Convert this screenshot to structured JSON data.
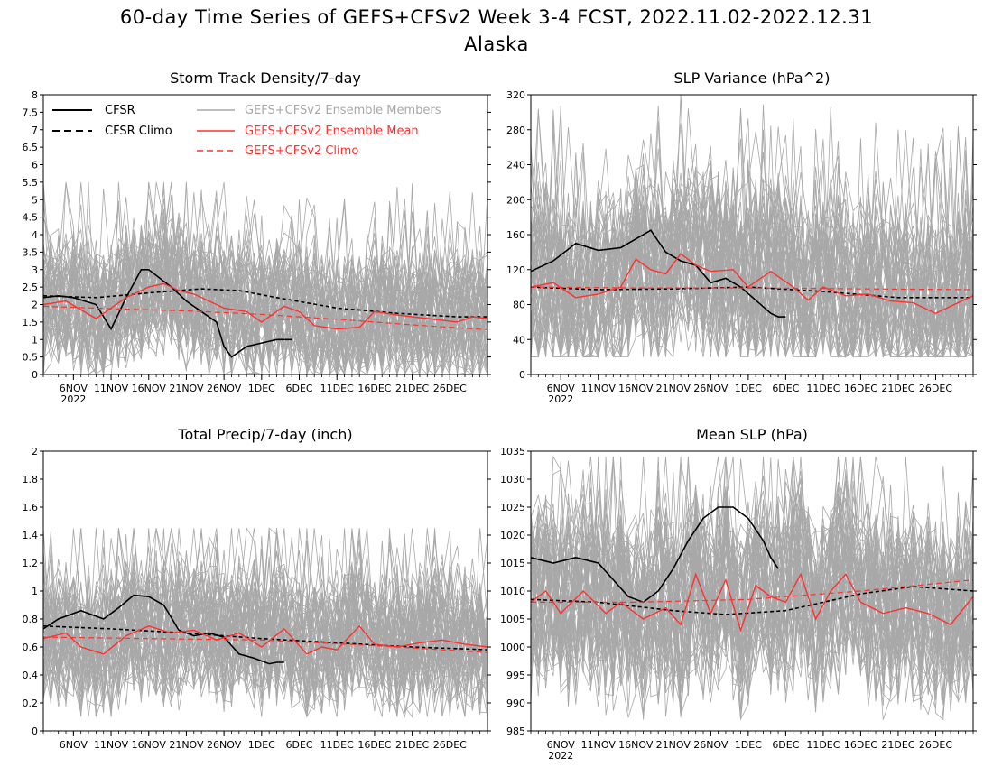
{
  "figure": {
    "title_line1": "60-day Time Series of GEFS+CFSv2 Week 3-4 FCST, 2022.11.02-2022.12.31",
    "title_line2": "Alaska"
  },
  "legend": {
    "cfsr": "CFSR",
    "cfsr_climo": "CFSR Climo",
    "members": "GEFS+CFSv2 Ensemble Members",
    "ens_mean": "GEFS+CFSv2 Ensemble Mean",
    "ens_climo": "GEFS+CFSv2 Climo"
  },
  "colors": {
    "cfsr": "#000000",
    "members": "#a8a8a8",
    "ens_mean": "#ff3030",
    "ens_climo": "#ff3030"
  },
  "x_axis": {
    "start_date": "2022.11.02",
    "end_date": "2022.12.31",
    "num_days": 60,
    "tick_labels": [
      "6NOV",
      "11NOV",
      "16NOV",
      "21NOV",
      "26NOV",
      "1DEC",
      "6DEC",
      "11DEC",
      "16DEC",
      "21DEC",
      "26DEC"
    ],
    "year_label": "2022"
  },
  "chart_data": [
    {
      "type": "line",
      "title": "Storm Track Density/7-day",
      "ylim": [
        0,
        8
      ],
      "yticks": [
        "0",
        "0.5",
        "1",
        "1.5",
        "2",
        "2.5",
        "3",
        "3.5",
        "4",
        "4.5",
        "5",
        "5.5",
        "6",
        "6.5",
        "7",
        "7.5",
        "8"
      ],
      "members_range": [
        0,
        5.5
      ],
      "series": [
        {
          "name": "CFSR",
          "x": [
            1,
            3,
            5,
            8,
            10,
            12,
            14,
            15,
            18,
            20,
            22,
            24,
            25,
            26,
            28,
            30,
            32,
            33,
            34
          ],
          "values": [
            2.2,
            2.25,
            2.2,
            2.0,
            1.3,
            2.2,
            3.0,
            3.0,
            2.5,
            2.1,
            1.8,
            1.5,
            0.8,
            0.5,
            0.8,
            0.9,
            1.0,
            1.0,
            1.0
          ]
        },
        {
          "name": "CFSR Climo",
          "x": [
            1,
            8,
            16,
            22,
            27,
            32,
            40,
            48,
            56,
            60
          ],
          "values": [
            2.25,
            2.2,
            2.35,
            2.45,
            2.4,
            2.2,
            1.9,
            1.75,
            1.65,
            1.65
          ]
        },
        {
          "name": "GEFS+CFSv2 Ensemble Mean",
          "x": [
            1,
            4,
            8,
            12,
            15,
            17,
            19,
            21,
            23,
            25,
            28,
            30,
            33,
            35,
            37,
            40,
            43,
            45,
            48,
            52,
            56,
            58,
            60
          ],
          "values": [
            2.0,
            2.1,
            1.6,
            2.2,
            2.5,
            2.6,
            2.4,
            2.3,
            2.1,
            1.9,
            1.8,
            1.5,
            1.95,
            1.8,
            1.4,
            1.3,
            1.35,
            1.8,
            1.7,
            1.6,
            1.5,
            1.65,
            1.6
          ]
        },
        {
          "name": "GEFS+CFSv2 Climo",
          "x": [
            1,
            10,
            20,
            30,
            40,
            50,
            60
          ],
          "values": [
            1.95,
            1.88,
            1.82,
            1.72,
            1.58,
            1.42,
            1.28
          ]
        }
      ]
    },
    {
      "type": "line",
      "title": "SLP Variance (hPa^2)",
      "ylim": [
        0,
        320
      ],
      "yticks": [
        "0",
        "40",
        "80",
        "120",
        "160",
        "200",
        "240",
        "280",
        "320"
      ],
      "members_range": [
        20,
        320
      ],
      "series": [
        {
          "name": "CFSR",
          "x": [
            1,
            4,
            7,
            10,
            13,
            15,
            17,
            19,
            21,
            23,
            25,
            27,
            29,
            31,
            33,
            34,
            35
          ],
          "values": [
            118,
            130,
            150,
            142,
            145,
            155,
            165,
            140,
            130,
            125,
            105,
            110,
            100,
            85,
            70,
            66,
            66
          ]
        },
        {
          "name": "CFSR Climo",
          "x": [
            1,
            10,
            20,
            30,
            40,
            50,
            60
          ],
          "values": [
            100,
            97,
            98,
            100,
            95,
            88,
            88
          ]
        },
        {
          "name": "GEFS+CFSv2 Ensemble Mean",
          "x": [
            1,
            4,
            7,
            10,
            13,
            15,
            17,
            19,
            21,
            23,
            25,
            28,
            30,
            33,
            36,
            38,
            40,
            43,
            46,
            49,
            52,
            55,
            57,
            60
          ],
          "values": [
            100,
            105,
            88,
            92,
            100,
            132,
            120,
            115,
            138,
            125,
            118,
            120,
            100,
            118,
            100,
            85,
            100,
            90,
            92,
            84,
            82,
            70,
            78,
            90
          ]
        },
        {
          "name": "GEFS+CFSv2 Climo",
          "x": [
            1,
            15,
            30,
            45,
            60
          ],
          "values": [
            100,
            99,
            99,
            98,
            97
          ]
        }
      ]
    },
    {
      "type": "line",
      "title": "Total Precip/7-day (inch)",
      "ylim": [
        0,
        2
      ],
      "yticks": [
        "0",
        "0.2",
        "0.4",
        "0.6",
        "0.8",
        "1",
        "1.2",
        "1.4",
        "1.6",
        "1.8",
        "2"
      ],
      "members_range": [
        0.1,
        1.45
      ],
      "series": [
        {
          "name": "CFSR",
          "x": [
            1,
            3,
            6,
            9,
            11,
            13,
            15,
            17,
            19,
            21,
            23,
            25,
            27,
            29,
            31,
            32,
            33
          ],
          "values": [
            0.73,
            0.8,
            0.86,
            0.8,
            0.88,
            0.97,
            0.96,
            0.9,
            0.72,
            0.68,
            0.7,
            0.67,
            0.55,
            0.52,
            0.48,
            0.49,
            0.49
          ]
        },
        {
          "name": "CFSR Climo",
          "x": [
            1,
            10,
            20,
            30,
            40,
            50,
            60
          ],
          "values": [
            0.75,
            0.73,
            0.7,
            0.66,
            0.63,
            0.6,
            0.58
          ]
        },
        {
          "name": "GEFS+CFSv2 Ensemble Mean",
          "x": [
            1,
            4,
            6,
            9,
            12,
            15,
            18,
            21,
            24,
            27,
            30,
            33,
            36,
            38,
            40,
            43,
            45,
            48,
            51,
            54,
            57,
            60
          ],
          "values": [
            0.66,
            0.7,
            0.6,
            0.55,
            0.68,
            0.75,
            0.7,
            0.72,
            0.65,
            0.7,
            0.6,
            0.73,
            0.55,
            0.6,
            0.58,
            0.75,
            0.62,
            0.6,
            0.63,
            0.65,
            0.62,
            0.6
          ]
        },
        {
          "name": "GEFS+CFSv2 Climo",
          "x": [
            1,
            15,
            30,
            45,
            60
          ],
          "values": [
            0.67,
            0.66,
            0.65,
            0.61,
            0.56
          ]
        }
      ]
    },
    {
      "type": "line",
      "title": "Mean SLP (hPa)",
      "ylim": [
        985,
        1035
      ],
      "yticks": [
        "985",
        "990",
        "995",
        "1000",
        "1005",
        "1010",
        "1015",
        "1020",
        "1025",
        "1030",
        "1035"
      ],
      "members_range": [
        987,
        1034
      ],
      "series": [
        {
          "name": "CFSR",
          "x": [
            1,
            4,
            7,
            10,
            12,
            14,
            16,
            18,
            20,
            22,
            24,
            26,
            28,
            30,
            32,
            33,
            34
          ],
          "values": [
            1016,
            1015,
            1016,
            1015,
            1012,
            1009,
            1008,
            1010,
            1014,
            1019,
            1023,
            1025,
            1025,
            1023,
            1019,
            1016,
            1014
          ]
        },
        {
          "name": "CFSR Climo",
          "x": [
            1,
            10,
            20,
            27,
            35,
            45,
            52,
            60
          ],
          "values": [
            1008.5,
            1008,
            1006.5,
            1005.8,
            1006.5,
            1009.5,
            1010.8,
            1010
          ]
        },
        {
          "name": "GEFS+CFSv2 Ensemble Mean",
          "x": [
            1,
            3,
            5,
            8,
            11,
            13,
            16,
            19,
            21,
            23,
            25,
            27,
            29,
            31,
            33,
            35,
            37,
            39,
            41,
            43,
            45,
            48,
            51,
            54,
            57,
            60
          ],
          "values": [
            1008,
            1010,
            1006,
            1010,
            1006,
            1008,
            1005,
            1007,
            1004,
            1013,
            1006,
            1012,
            1003,
            1011,
            1009,
            1008,
            1013,
            1005,
            1010,
            1013,
            1008,
            1006,
            1007,
            1006,
            1004,
            1009
          ]
        },
        {
          "name": "GEFS+CFSv2 Climo",
          "x": [
            1,
            15,
            30,
            45,
            60
          ],
          "values": [
            1008,
            1008,
            1008.5,
            1010,
            1012
          ]
        }
      ]
    }
  ]
}
